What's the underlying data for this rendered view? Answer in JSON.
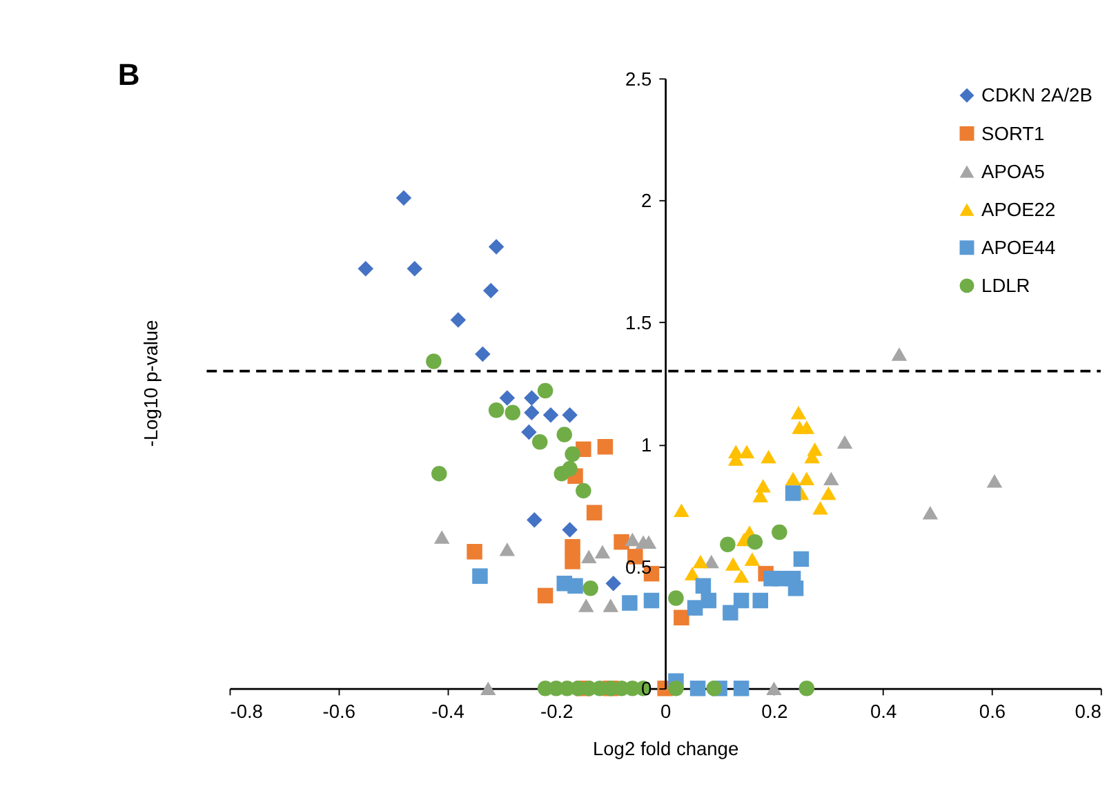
{
  "chart_data": {
    "type": "scatter",
    "xlabel": "Log2 fold change",
    "ylabel": "-Log10 p-value",
    "annotations": [
      "B"
    ],
    "xlim": [
      -0.8,
      0.8
    ],
    "ylim": [
      0,
      2.5
    ],
    "xticks": [
      -0.8,
      -0.6,
      -0.4,
      -0.2,
      0,
      0.2,
      0.4,
      0.6,
      0.8
    ],
    "yticks": [
      0,
      0.5,
      1,
      1.5,
      2,
      2.5
    ],
    "grid": false,
    "legend": "top right",
    "ref_lines": [
      {
        "axis": "y",
        "value": 1.3,
        "line_style": "dashed",
        "color": "#000000"
      }
    ],
    "series": [
      {
        "name": "CDKN 2A/2B",
        "color": "#4472c4",
        "marker": "diamond",
        "x": [
          -0.48,
          -0.55,
          -0.46,
          -0.31,
          -0.32,
          -0.38,
          -0.335,
          -0.29,
          -0.245,
          -0.245,
          -0.21,
          -0.175,
          -0.25,
          -0.24,
          -0.175,
          -0.095
        ],
        "values": [
          2.01,
          1.72,
          1.72,
          1.81,
          1.63,
          1.51,
          1.37,
          1.19,
          1.19,
          1.13,
          1.12,
          1.12,
          1.05,
          0.69,
          0.65,
          0.43
        ]
      },
      {
        "name": "SORT1",
        "color": "#ed7d31",
        "marker": "square",
        "x": [
          -0.11,
          -0.15,
          -0.165,
          -0.13,
          -0.35,
          -0.17,
          -0.08,
          -0.17,
          -0.055,
          -0.22,
          -0.025,
          0.03,
          0.185,
          -0.15,
          -0.1,
          0.0
        ],
        "values": [
          0.99,
          0.98,
          0.87,
          0.72,
          0.56,
          0.58,
          0.6,
          0.52,
          0.54,
          0.38,
          0.47,
          0.29,
          0.47,
          0,
          0,
          0
        ]
      },
      {
        "name": "APOA5",
        "color": "#a5a5a5",
        "marker": "triangle",
        "x": [
          -0.325,
          -0.41,
          -0.29,
          -0.145,
          -0.1,
          -0.04,
          -0.14,
          -0.115,
          -0.06,
          0.085,
          0.33,
          0.305,
          -0.03,
          0.43,
          0.605,
          0.487,
          0.2
        ],
        "values": [
          0,
          0.62,
          0.57,
          0.34,
          0.34,
          0.6,
          0.54,
          0.56,
          0.61,
          0.52,
          1.01,
          0.86,
          0.6,
          1.37,
          0.85,
          0.72,
          0
        ]
      },
      {
        "name": "APOE22",
        "color": "#ffc000",
        "marker": "triangle",
        "x": [
          0.245,
          0.247,
          0.26,
          0.13,
          0.15,
          0.13,
          0.19,
          0.275,
          0.27,
          0.18,
          0.175,
          0.235,
          0.26,
          0.25,
          0.3,
          0.285,
          0.03,
          0.155,
          0.145,
          0.065,
          0.05,
          0.125,
          0.16,
          0.14
        ],
        "values": [
          1.13,
          1.07,
          1.07,
          0.97,
          0.97,
          0.94,
          0.95,
          0.98,
          0.95,
          0.83,
          0.79,
          0.86,
          0.86,
          0.8,
          0.8,
          0.74,
          0.73,
          0.64,
          0.61,
          0.52,
          0.47,
          0.51,
          0.53,
          0.46
        ]
      },
      {
        "name": "APOE44",
        "color": "#5b9bd5",
        "marker": "square",
        "x": [
          0.235,
          0.25,
          0.235,
          0.24,
          0.195,
          0.21,
          0.175,
          0.14,
          0.12,
          0.07,
          0.08,
          0.055,
          -0.34,
          -0.185,
          -0.165,
          -0.065,
          -0.025,
          0.02,
          0.06,
          0.1,
          0.14
        ],
        "values": [
          0.8,
          0.53,
          0.45,
          0.41,
          0.45,
          0.45,
          0.36,
          0.36,
          0.31,
          0.42,
          0.36,
          0.33,
          0.46,
          0.43,
          0.42,
          0.35,
          0.36,
          0.03,
          0,
          0,
          0
        ]
      },
      {
        "name": "LDLR",
        "color": "#70ad47",
        "marker": "circle",
        "x": [
          -0.425,
          -0.22,
          -0.31,
          -0.28,
          -0.23,
          -0.185,
          -0.17,
          -0.19,
          -0.175,
          -0.15,
          -0.415,
          -0.137,
          0.02,
          0.115,
          0.165,
          0.21,
          -0.22,
          -0.2,
          -0.18,
          -0.16,
          -0.14,
          -0.12,
          -0.1,
          -0.08,
          -0.06,
          -0.04,
          0.02,
          0.09,
          0.26
        ],
        "values": [
          1.34,
          1.22,
          1.14,
          1.13,
          1.01,
          1.04,
          0.96,
          0.88,
          0.9,
          0.81,
          0.88,
          0.41,
          0.37,
          0.59,
          0.6,
          0.64,
          0,
          0,
          0,
          0,
          0,
          0,
          0,
          0,
          0,
          0,
          0,
          0,
          0
        ]
      }
    ]
  }
}
